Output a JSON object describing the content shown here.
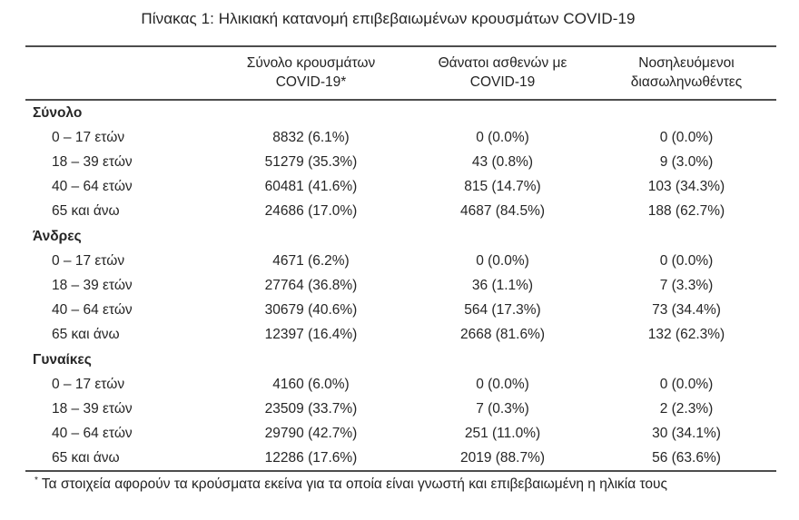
{
  "title": "Πίνακας 1: Ηλικιακή κατανομή επιβεβαιωμένων κρουσμάτων COVID-19",
  "table": {
    "columns": [
      {
        "line1": "",
        "line2": ""
      },
      {
        "line1": "Σύνολο κρουσμάτων",
        "line2": "COVID-19*"
      },
      {
        "line1": "Θάνατοι ασθενών με",
        "line2": "COVID-19"
      },
      {
        "line1": "Νοσηλευόμενοι",
        "line2": "διασωληνωθέντες"
      }
    ],
    "sections": [
      {
        "label": "Σύνολο",
        "rows": [
          {
            "label": "0 – 17 ετών",
            "cases": "8832 (6.1%)",
            "deaths": "0 (0.0%)",
            "intubated": "0 (0.0%)"
          },
          {
            "label": "18 – 39 ετών",
            "cases": "51279 (35.3%)",
            "deaths": "43 (0.8%)",
            "intubated": "9 (3.0%)"
          },
          {
            "label": "40 – 64 ετών",
            "cases": "60481 (41.6%)",
            "deaths": "815 (14.7%)",
            "intubated": "103 (34.3%)"
          },
          {
            "label": "65 και άνω",
            "cases": "24686 (17.0%)",
            "deaths": "4687 (84.5%)",
            "intubated": "188 (62.7%)"
          }
        ]
      },
      {
        "label": "Άνδρες",
        "rows": [
          {
            "label": "0 – 17 ετών",
            "cases": "4671 (6.2%)",
            "deaths": "0 (0.0%)",
            "intubated": "0 (0.0%)"
          },
          {
            "label": "18 – 39 ετών",
            "cases": "27764 (36.8%)",
            "deaths": "36 (1.1%)",
            "intubated": "7 (3.3%)"
          },
          {
            "label": "40 – 64 ετών",
            "cases": "30679 (40.6%)",
            "deaths": "564 (17.3%)",
            "intubated": "73 (34.4%)"
          },
          {
            "label": "65 και άνω",
            "cases": "12397 (16.4%)",
            "deaths": "2668 (81.6%)",
            "intubated": "132 (62.3%)"
          }
        ]
      },
      {
        "label": "Γυναίκες",
        "rows": [
          {
            "label": "0 – 17 ετών",
            "cases": "4160 (6.0%)",
            "deaths": "0 (0.0%)",
            "intubated": "0 (0.0%)"
          },
          {
            "label": "18 – 39 ετών",
            "cases": "23509 (33.7%)",
            "deaths": "7 (0.3%)",
            "intubated": "2 (2.3%)"
          },
          {
            "label": "40 – 64 ετών",
            "cases": "29790 (42.7%)",
            "deaths": "251 (11.0%)",
            "intubated": "30 (34.1%)"
          },
          {
            "label": "65 και άνω",
            "cases": "12286 (17.6%)",
            "deaths": "2019 (88.7%)",
            "intubated": "56 (63.6%)"
          }
        ]
      }
    ],
    "footnote_marker": "*",
    "footnote": "Τα στοιχεία αφορούν τα κρούσματα εκείνα για τα οποία είναι γνωστή και επιβεβαιωμένη η ηλικία τους"
  },
  "colors": {
    "text": "#262626",
    "rule": "#4d4d4d",
    "background": "#ffffff"
  }
}
